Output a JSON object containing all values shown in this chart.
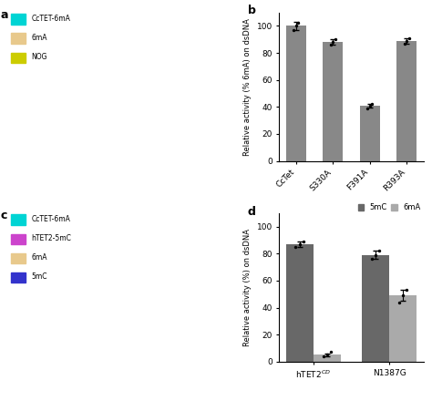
{
  "panel_b": {
    "categories": [
      "CcTet",
      "S330A",
      "F391A",
      "R393A"
    ],
    "bar_values": [
      100,
      88,
      41,
      89
    ],
    "error_bars": [
      3,
      2,
      1.5,
      2
    ],
    "dot_values_approx": [
      [
        97,
        100,
        102
      ],
      [
        86,
        88,
        90
      ],
      [
        39,
        41,
        42
      ],
      [
        87,
        89,
        91
      ]
    ],
    "bar_color": "#888888",
    "ylabel": "Relative activity (% 6mA) on dsDNA",
    "ylim": [
      0,
      110
    ],
    "yticks": [
      0,
      20,
      40,
      60,
      80,
      100
    ],
    "panel_label": "b"
  },
  "panel_d": {
    "groups": [
      "hTET2$^{CD}$",
      "N1387G"
    ],
    "series": [
      "5mC",
      "6mA"
    ],
    "bar_values": [
      [
        87,
        5
      ],
      [
        79,
        49
      ]
    ],
    "error_bars": [
      [
        2,
        1
      ],
      [
        3,
        4
      ]
    ],
    "dot_values_approx": [
      [
        [
          85,
          87,
          89
        ],
        [
          4,
          5,
          7
        ]
      ],
      [
        [
          76,
          79,
          82
        ],
        [
          44,
          49,
          53
        ]
      ]
    ],
    "bar_colors": [
      "#686868",
      "#aaaaaa"
    ],
    "ylabel": "Relative activity (%) on dsDNA",
    "ylim": [
      0,
      110
    ],
    "yticks": [
      0,
      20,
      40,
      60,
      80,
      100
    ],
    "panel_label": "d",
    "legend_labels": [
      "5mC",
      "6mA"
    ]
  },
  "panel_a": {
    "panel_label": "a",
    "legend_items": [
      {
        "label": "CcTET-6mA",
        "color": "#00d4d4"
      },
      {
        "label": "6mA",
        "color": "#e8c98c"
      },
      {
        "label": "NOG",
        "color": "#cccc00"
      }
    ]
  },
  "panel_c": {
    "panel_label": "c",
    "legend_items": [
      {
        "label": "CcTET-6mA",
        "color": "#00d4d4"
      },
      {
        "label": "hTET2-5mC",
        "color": "#cc44cc"
      },
      {
        "label": "6mA",
        "color": "#e8c98c"
      },
      {
        "label": "5mC",
        "color": "#3333cc"
      }
    ]
  },
  "figure": {
    "figsize": [
      4.74,
      4.51
    ],
    "dpi": 100
  }
}
